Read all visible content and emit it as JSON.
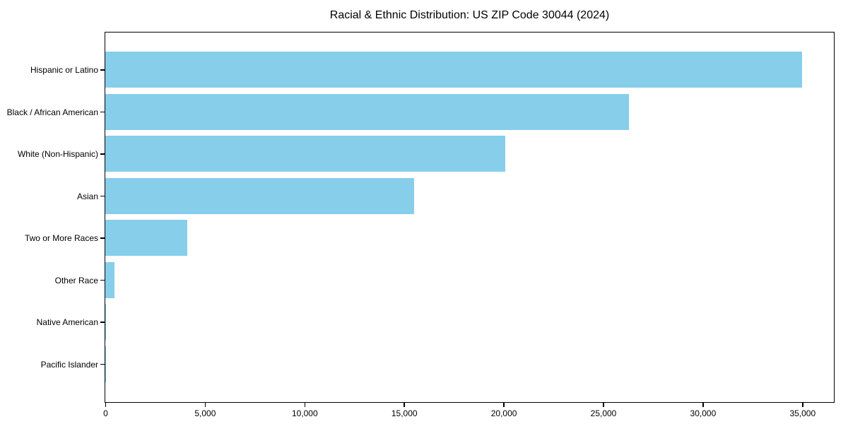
{
  "page": {
    "background_color": "#ffffff",
    "text_color": "#000000"
  },
  "chart_data": {
    "type": "bar",
    "orientation": "horizontal",
    "title": "Racial & Ethnic Distribution: US ZIP Code 30044 (2024)",
    "categories": [
      "Hispanic or Latino",
      "Black / African American",
      "White (Non-Hispanic)",
      "Asian",
      "Two or More Races",
      "Other Race",
      "Native American",
      "Pacific Islander"
    ],
    "values": [
      35000,
      26300,
      20100,
      15500,
      4100,
      450,
      50,
      10
    ],
    "xlabel": "",
    "ylabel": "",
    "xlim": [
      0,
      36550
    ],
    "x_tick_values": [
      0,
      5000,
      10000,
      15000,
      20000,
      25000,
      30000,
      35000
    ],
    "x_tick_labels": [
      "0",
      "5,000",
      "10,000",
      "15,000",
      "20,000",
      "25,000",
      "30,000",
      "35,000"
    ],
    "bar_color": "#87CEEB",
    "axis_color": "#000000",
    "grid": false,
    "legend_position": "none"
  }
}
